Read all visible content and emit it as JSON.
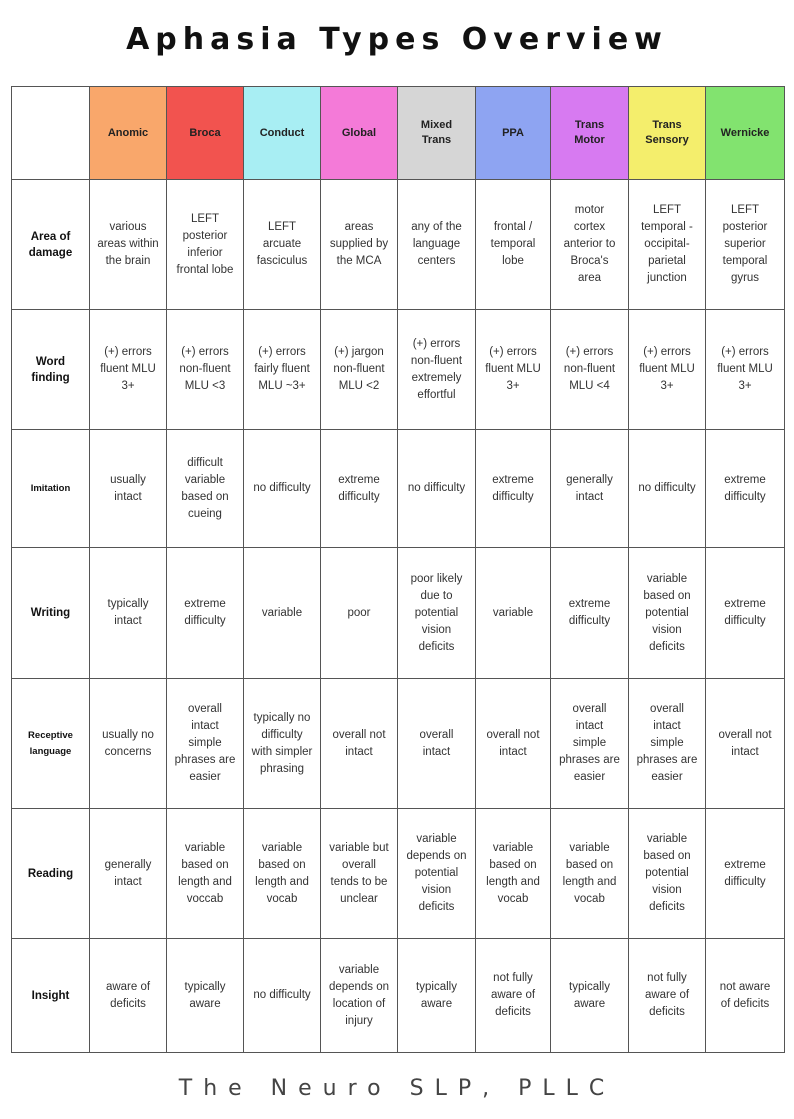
{
  "title": "Aphasia Types Overview",
  "footer": "The Neuro SLP, PLLC",
  "columns": [
    {
      "label": "Anomic",
      "color": "#f9a76b"
    },
    {
      "label": "Broca",
      "color": "#f2534f"
    },
    {
      "label": "Conduct",
      "color": "#a8eef3"
    },
    {
      "label": "Global",
      "color": "#f47ad8"
    },
    {
      "label": "Mixed Trans",
      "color": "#d6d6d6"
    },
    {
      "label": "PPA",
      "color": "#8ea4f2"
    },
    {
      "label": "Trans Motor",
      "color": "#d77af1"
    },
    {
      "label": "Trans Sensory",
      "color": "#f4ee6c"
    },
    {
      "label": "Wernicke",
      "color": "#82e36f"
    }
  ],
  "rows": [
    {
      "label": "Area of damage",
      "cells": [
        "various areas within the brain",
        "LEFT posterior inferior frontal lobe",
        "LEFT arcuate fasciculus",
        "areas supplied by the MCA",
        "any of the language centers",
        "frontal / temporal lobe",
        "motor cortex anterior to Broca's area",
        "LEFT temporal - occipital-parietal junction",
        "LEFT posterior superior temporal gyrus"
      ]
    },
    {
      "label": "Word finding",
      "cells": [
        "(+) errors fluent MLU 3+",
        "(+) errors non-fluent MLU <3",
        "(+) errors fairly fluent MLU ~3+",
        "(+) jargon non-fluent MLU <2",
        "(+) errors non-fluent extremely effortful",
        "(+) errors fluent MLU 3+",
        "(+) errors non-fluent MLU <4",
        "(+) errors fluent MLU 3+",
        "(+) errors fluent MLU 3+"
      ]
    },
    {
      "label": "Imitation",
      "small": true,
      "cells": [
        "usually intact",
        "difficult variable based on cueing",
        "no difficulty",
        "extreme difficulty",
        "no difficulty",
        "extreme difficulty",
        "generally intact",
        "no difficulty",
        "extreme difficulty"
      ]
    },
    {
      "label": "Writing",
      "cells": [
        "typically intact",
        "extreme difficulty",
        "variable",
        "poor",
        "poor likely due to potential vision deficits",
        "variable",
        "extreme difficulty",
        "variable based on potential vision deficits",
        "extreme difficulty"
      ]
    },
    {
      "label": "Receptive language",
      "small": true,
      "cells": [
        "usually no concerns",
        "overall intact simple phrases are easier",
        "typically no difficulty with simpler phrasing",
        "overall not intact",
        "overall intact",
        "overall not intact",
        "overall intact simple phrases are easier",
        "overall intact simple phrases are easier",
        "overall not intact"
      ]
    },
    {
      "label": "Reading",
      "cells": [
        "generally intact",
        "variable based on length and voccab",
        "variable based on length and vocab",
        "variable but overall tends to be unclear",
        "variable depends on potential vision deficits",
        "variable based on length and vocab",
        "variable based on length and vocab",
        "variable based on potential vision deficits",
        "extreme difficulty"
      ]
    },
    {
      "label": "Insight",
      "cells": [
        "aware of deficits",
        "typically aware",
        "no difficulty",
        "variable depends on location of injury",
        "typically aware",
        "not fully aware of deficits",
        "typically aware",
        "not fully aware of deficits",
        "not aware of deficits"
      ]
    }
  ]
}
